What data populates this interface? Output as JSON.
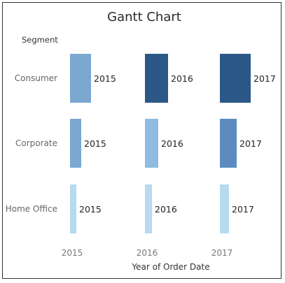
{
  "chart_data": {
    "type": "bar",
    "subtype": "gantt",
    "title": "Gantt Chart",
    "row_header": "Segment",
    "xlabel": "Year of Order Date",
    "x_ticks": [
      "2015",
      "2016",
      "2017"
    ],
    "rows": [
      "Consumer",
      "Corporate",
      "Home Office"
    ],
    "series": [
      {
        "name": "Consumer",
        "bars": [
          {
            "year": "2015",
            "label": "2015",
            "relative_size": 0.6,
            "color": "#7ba7d1"
          },
          {
            "year": "2016",
            "label": "2016",
            "relative_size": 0.65,
            "color": "#2c5887"
          },
          {
            "year": "2017",
            "label": "2017",
            "relative_size": 0.87,
            "color": "#2c5887"
          }
        ]
      },
      {
        "name": "Corporate",
        "bars": [
          {
            "year": "2015",
            "label": "2015",
            "relative_size": 0.32,
            "color": "#7ba7d1"
          },
          {
            "year": "2016",
            "label": "2016",
            "relative_size": 0.37,
            "color": "#8fbce0"
          },
          {
            "year": "2017",
            "label": "2017",
            "relative_size": 0.47,
            "color": "#5d8bbf"
          }
        ]
      },
      {
        "name": "Home Office",
        "bars": [
          {
            "year": "2015",
            "label": "2015",
            "relative_size": 0.17,
            "color": "#b6daee"
          },
          {
            "year": "2016",
            "label": "2016",
            "relative_size": 0.2,
            "color": "#b6daee"
          },
          {
            "year": "2017",
            "label": "2017",
            "relative_size": 0.25,
            "color": "#b6daee"
          }
        ]
      }
    ],
    "grid": false,
    "legend": "none"
  }
}
